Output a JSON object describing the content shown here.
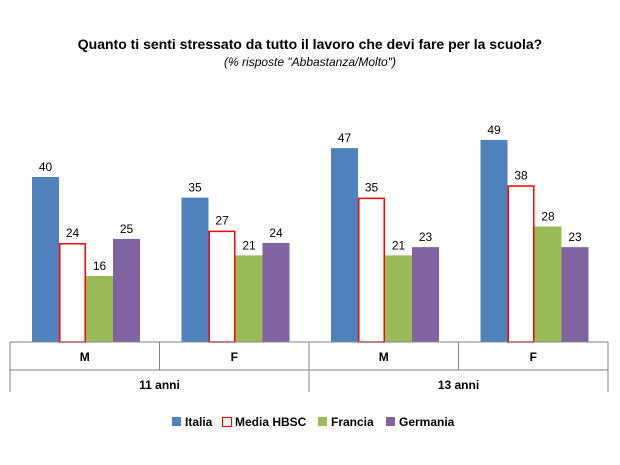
{
  "chart_data": {
    "type": "bar",
    "title": "Quanto ti senti stressato da tutto il lavoro che devi fare per la scuola?",
    "subtitle": "(% risposte \"Abbastanza/Molto\")",
    "categories": [
      "M",
      "F",
      "M",
      "F"
    ],
    "groups": [
      {
        "label": "11 anni",
        "categories": [
          "M",
          "F"
        ]
      },
      {
        "label": "13 anni",
        "categories": [
          "M",
          "F"
        ]
      }
    ],
    "series": [
      {
        "name": "Italia",
        "values": [
          40,
          35,
          47,
          49
        ],
        "color": "#4f81bd",
        "fill": true
      },
      {
        "name": "Media HBSC",
        "values": [
          24,
          27,
          35,
          38
        ],
        "color": "#ff0000",
        "fill": false
      },
      {
        "name": "Francia",
        "values": [
          16,
          21,
          21,
          28
        ],
        "color": "#9bbb59",
        "fill": true
      },
      {
        "name": "Germania",
        "values": [
          25,
          24,
          23,
          23
        ],
        "color": "#8064a2",
        "fill": true
      }
    ],
    "ylim": [
      0,
      50
    ],
    "legend": "bottom",
    "grid": false
  }
}
